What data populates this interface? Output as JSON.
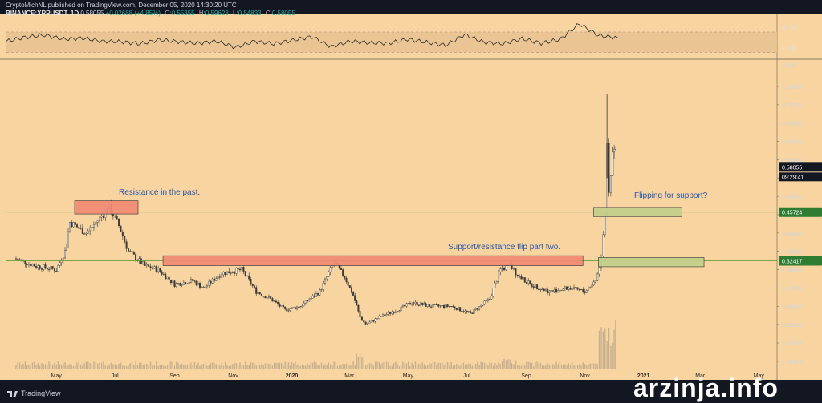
{
  "header": {
    "line1": "CryptoMichNL published on TradingView.com, December 05, 2020 14:30:20 UTC",
    "symbol": "BINANCE:XRPUSDT, 1D",
    "last": "0.58055",
    "change": "+0.02688 (+4.85%)",
    "o_label": "O:",
    "o": "0.55355",
    "h_label": "H:",
    "h": "0.59628",
    "l_label": "L:",
    "l": "0.54833",
    "c_label": "C:",
    "c": "0.58055"
  },
  "footer": {
    "brand": "TradingView"
  },
  "watermark": "arzinja.info",
  "colors": {
    "background": "#f8d4a0",
    "candle": "#3a3a3a",
    "level_line": "#6e9a3a",
    "resistance_box": "#f28b74",
    "support_box": "#c2d08a",
    "annotation_text": "#2a56a8",
    "price_tag_green": "#2e7d32"
  },
  "chart_data": [
    {
      "type": "line",
      "role": "rsi-indicator",
      "ylim": [
        20,
        95
      ],
      "yticks": [
        "80.00",
        "40.00"
      ],
      "band": [
        30,
        70
      ],
      "x": [
        "2020-03-20",
        "2020-04-15",
        "2020-05-05",
        "2020-05-25",
        "2020-06-15",
        "2020-07-05",
        "2020-07-25",
        "2020-08-15",
        "2020-09-05",
        "2020-09-25",
        "2020-10-15",
        "2020-11-05",
        "2020-11-25",
        "2020-12-15",
        "2021-01-05",
        "2021-01-25",
        "2021-02-10",
        "2021-03-01",
        "2021-03-20",
        "2021-04-10",
        "2021-05-01",
        "2021-05-20",
        "2021-06-10",
        "2021-07-01",
        "2021-07-20",
        "2021-08-10",
        "2021-09-01",
        "2021-09-20",
        "2021-10-10",
        "2021-11-01",
        "2021-11-15",
        "2021-11-25",
        "2021-12-05"
      ],
      "values": [
        52,
        60,
        64,
        56,
        58,
        52,
        51,
        47,
        55,
        51,
        48,
        52,
        40,
        52,
        47,
        54,
        61,
        41,
        52,
        49,
        48,
        56,
        50,
        44,
        65,
        50,
        47,
        57,
        48,
        56,
        86,
        63,
        59
      ]
    },
    {
      "type": "candlestick",
      "role": "price",
      "ylabel": "USDT",
      "ylim": [
        0.03,
        0.87
      ],
      "yticks": [
        "0.80000",
        "0.75000",
        "0.70000",
        "0.65000",
        "0.60000",
        "0.55000",
        "0.50000",
        "0.45000",
        "0.40000",
        "0.35000",
        "0.30000",
        "0.25000",
        "0.20000",
        "0.15000",
        "0.10000",
        "0.05000"
      ],
      "xticks": [
        "May",
        "Jul",
        "Sep",
        "Nov",
        "2020",
        "Mar",
        "May",
        "Jul",
        "Sep",
        "Nov",
        "2021",
        "Mar",
        "May"
      ],
      "last_price": "0.58055",
      "countdown": "09:29:41",
      "levels": [
        {
          "value": 0.45724,
          "label": "0.45724"
        },
        {
          "value": 0.32417,
          "label": "0.32417"
        }
      ],
      "anchors": [
        [
          "2019-03-20",
          0.33
        ],
        [
          "2019-04-10",
          0.31
        ],
        [
          "2019-05-01",
          0.3
        ],
        [
          "2019-05-10",
          0.35
        ],
        [
          "2019-05-15",
          0.43
        ],
        [
          "2019-06-01",
          0.4
        ],
        [
          "2019-06-15",
          0.44
        ],
        [
          "2019-06-25",
          0.47
        ],
        [
          "2019-07-05",
          0.42
        ],
        [
          "2019-07-15",
          0.35
        ],
        [
          "2019-08-01",
          0.31
        ],
        [
          "2019-08-15",
          0.3
        ],
        [
          "2019-09-01",
          0.26
        ],
        [
          "2019-09-20",
          0.27
        ],
        [
          "2019-10-01",
          0.25
        ],
        [
          "2019-10-20",
          0.29
        ],
        [
          "2019-11-10",
          0.3
        ],
        [
          "2019-11-25",
          0.24
        ],
        [
          "2019-12-10",
          0.22
        ],
        [
          "2019-12-25",
          0.19
        ],
        [
          "2020-01-10",
          0.2
        ],
        [
          "2020-01-30",
          0.24
        ],
        [
          "2020-02-14",
          0.32
        ],
        [
          "2020-02-25",
          0.28
        ],
        [
          "2020-03-05",
          0.23
        ],
        [
          "2020-03-12",
          0.17
        ],
        [
          "2020-03-18",
          0.15
        ],
        [
          "2020-04-01",
          0.17
        ],
        [
          "2020-04-20",
          0.19
        ],
        [
          "2020-05-05",
          0.21
        ],
        [
          "2020-05-25",
          0.2
        ],
        [
          "2020-06-15",
          0.2
        ],
        [
          "2020-07-05",
          0.18
        ],
        [
          "2020-07-25",
          0.22
        ],
        [
          "2020-08-05",
          0.3
        ],
        [
          "2020-08-15",
          0.31
        ],
        [
          "2020-08-25",
          0.28
        ],
        [
          "2020-09-05",
          0.26
        ],
        [
          "2020-09-25",
          0.24
        ],
        [
          "2020-10-15",
          0.25
        ],
        [
          "2020-11-01",
          0.24
        ],
        [
          "2020-11-12",
          0.27
        ],
        [
          "2020-11-18",
          0.33
        ],
        [
          "2020-11-22",
          0.45
        ],
        [
          "2020-11-24",
          0.65
        ],
        [
          "2020-11-26",
          0.52
        ],
        [
          "2020-11-30",
          0.62
        ],
        [
          "2020-12-03",
          0.63
        ],
        [
          "2020-12-05",
          0.58
        ]
      ],
      "spikes": [
        {
          "date": "2020-03-12",
          "low": 0.101
        },
        {
          "date": "2020-11-24",
          "high": 0.78
        }
      ],
      "volume_note": "volume histogram at bottom, largest spike late November 2020",
      "annotations": [
        {
          "text": "Resistance in the past.",
          "kind": "resistance",
          "x0": "2019-05-20",
          "x1": "2019-07-25",
          "y0": 0.452,
          "y1": 0.488
        },
        {
          "text": "Support/resistance flip part two.",
          "kind": "resistance",
          "x0": "2019-08-20",
          "x1": "2020-10-30",
          "y0": 0.311,
          "y1": 0.338
        },
        {
          "text": "Flipping for support?",
          "kind": "support",
          "x0": "2020-11-10",
          "x1": "2021-02-10",
          "y0": 0.445,
          "y1": 0.47
        },
        {
          "text": "",
          "kind": "support",
          "x0": "2020-11-15",
          "x1": "2021-03-05",
          "y0": 0.308,
          "y1": 0.333
        }
      ]
    }
  ]
}
